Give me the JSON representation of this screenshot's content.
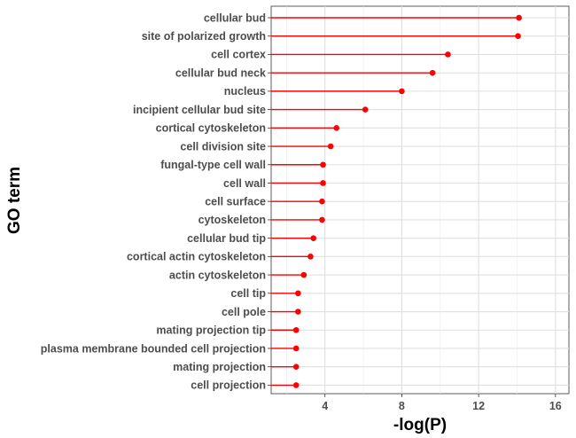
{
  "chart_data": {
    "type": "lollipop",
    "xlabel": "-log(P)",
    "ylabel": "GO term",
    "xlim": [
      1.2,
      16.7
    ],
    "x_ticks": [
      4,
      8,
      12,
      16
    ],
    "grid": true,
    "color": "#ff0000",
    "categories": [
      "cellular bud",
      "site of polarized growth",
      "cell cortex",
      "cellular bud neck",
      "nucleus",
      "incipient cellular bud site",
      "cortical cytoskeleton",
      "cell division site",
      "fungal-type cell wall",
      "cell wall",
      "cell surface",
      "cytoskeleton",
      "cellular bud tip",
      "cortical actin cytoskeleton",
      "actin cytoskeleton",
      "cell tip",
      "cell pole",
      "mating projection tip",
      "plasma membrane bounded cell projection",
      "mating projection",
      "cell projection"
    ],
    "values": [
      14.1,
      14.05,
      10.4,
      9.6,
      8.0,
      6.1,
      4.6,
      4.3,
      3.9,
      3.9,
      3.85,
      3.85,
      3.4,
      3.25,
      2.9,
      2.6,
      2.6,
      2.5,
      2.5,
      2.5,
      2.5
    ]
  }
}
